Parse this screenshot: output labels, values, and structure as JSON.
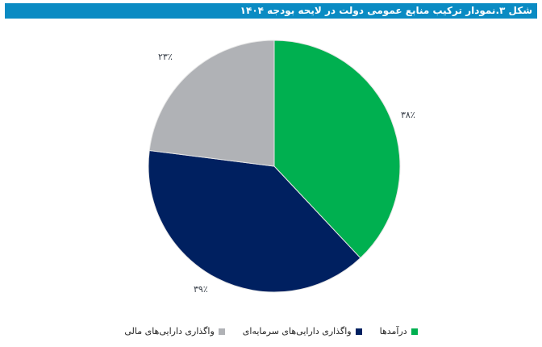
{
  "title": "شکل ۳.نمودار ترکیب منابع عمومی دولت در لایحه بودجه ۱۴۰۴",
  "labels": {
    "green": "۳۸٪",
    "navy": "۳۹٪",
    "gray": "۲۳٪"
  },
  "legend": [
    {
      "label": "درآمدها",
      "color": "#00b050"
    },
    {
      "label": "واگذاری دارایی‌های سرمایه‌ای",
      "color": "#002060"
    },
    {
      "label": "واگذاری دارایی‌های مالی",
      "color": "#b0b2b6"
    }
  ],
  "chart_data": {
    "type": "pie",
    "title": "شکل ۳.نمودار ترکیب منابع عمومی دولت در لایحه بودجه ۱۴۰۴",
    "categories": [
      "درآمدها",
      "واگذاری دارایی‌های سرمایه‌ای",
      "واگذاری دارایی‌های مالی"
    ],
    "values": [
      38,
      39,
      23
    ],
    "unit": "%",
    "colors": [
      "#00b050",
      "#002060",
      "#b0b2b6"
    ],
    "legend_position": "bottom",
    "start_angle": "12 o'clock, clockwise"
  }
}
